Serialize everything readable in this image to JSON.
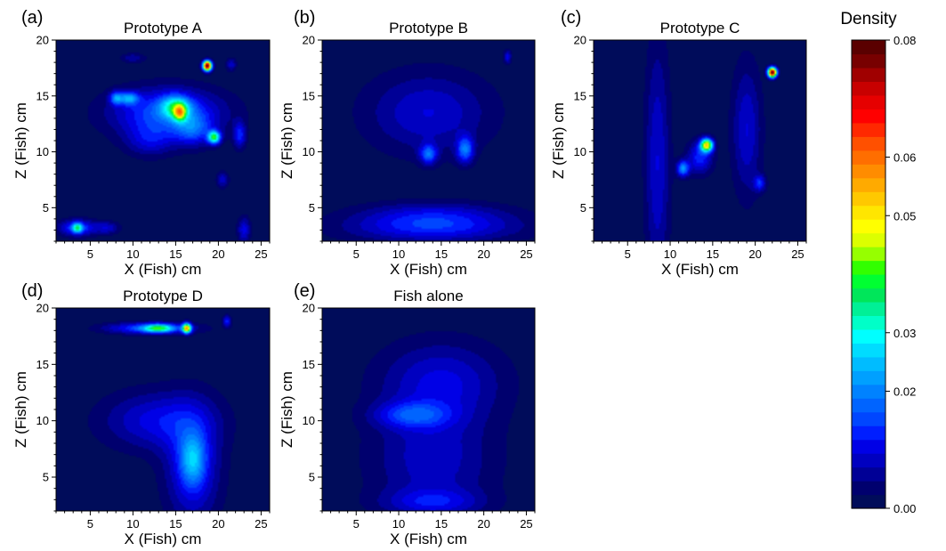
{
  "chart_data": [
    {
      "type": "heatmap",
      "panel_label": "(a)",
      "title": "Prototype A",
      "xlabel": "X (Fish) cm",
      "ylabel": "Z (Fish) cm",
      "xlim": [
        1,
        26
      ],
      "ylim": [
        2,
        20
      ],
      "xticks": [
        "5",
        "10",
        "15",
        "20",
        "25"
      ],
      "yticks": [
        "5",
        "10",
        "15",
        "20"
      ],
      "blobs": [
        {
          "x": 14,
          "y": 13.5,
          "sx": 4.5,
          "sy": 1.5,
          "v": 0.016
        },
        {
          "x": 15,
          "y": 14,
          "sx": 1.2,
          "sy": 0.7,
          "v": 0.022
        },
        {
          "x": 15.5,
          "y": 13.5,
          "sx": 0.5,
          "sy": 0.5,
          "v": 0.028
        },
        {
          "x": 9.5,
          "y": 14.8,
          "sx": 0.8,
          "sy": 0.4,
          "v": 0.018
        },
        {
          "x": 8,
          "y": 14.8,
          "sx": 0.5,
          "sy": 0.4,
          "v": 0.016
        },
        {
          "x": 19.5,
          "y": 11.3,
          "sx": 0.5,
          "sy": 0.4,
          "v": 0.035
        },
        {
          "x": 17,
          "y": 12,
          "sx": 1.5,
          "sy": 1,
          "v": 0.012
        },
        {
          "x": 22.5,
          "y": 11.5,
          "sx": 0.5,
          "sy": 0.8,
          "v": 0.012
        },
        {
          "x": 18.7,
          "y": 17.7,
          "sx": 0.35,
          "sy": 0.3,
          "v": 0.08
        },
        {
          "x": 3.5,
          "y": 3.2,
          "sx": 1.5,
          "sy": 0.5,
          "v": 0.015
        },
        {
          "x": 3.5,
          "y": 3.2,
          "sx": 0.4,
          "sy": 0.3,
          "v": 0.022
        },
        {
          "x": 7,
          "y": 3.2,
          "sx": 1,
          "sy": 0.4,
          "v": 0.008
        },
        {
          "x": 23,
          "y": 3,
          "sx": 0.5,
          "sy": 0.8,
          "v": 0.01
        },
        {
          "x": 10,
          "y": 18.4,
          "sx": 1,
          "sy": 0.3,
          "v": 0.006
        },
        {
          "x": 21.5,
          "y": 17.8,
          "sx": 0.4,
          "sy": 0.4,
          "v": 0.008
        },
        {
          "x": 20.5,
          "y": 7.5,
          "sx": 0.5,
          "sy": 0.5,
          "v": 0.008
        },
        {
          "x": 12,
          "y": 11,
          "sx": 2,
          "sy": 1,
          "v": 0.008
        }
      ]
    },
    {
      "type": "heatmap",
      "panel_label": "(b)",
      "title": "Prototype B",
      "xlabel": "X (Fish) cm",
      "ylabel": "Z (Fish) cm",
      "xlim": [
        1,
        26
      ],
      "ylim": [
        2,
        20
      ],
      "xticks": [
        "5",
        "10",
        "15",
        "20",
        "25"
      ],
      "yticks": [
        "5",
        "10",
        "15",
        "20"
      ],
      "blobs": [
        {
          "x": 14,
          "y": 3.2,
          "sx": 7,
          "sy": 0.9,
          "v": 0.012
        },
        {
          "x": 14,
          "y": 4.5,
          "sx": 6,
          "sy": 0.8,
          "v": 0.007
        },
        {
          "x": 13.5,
          "y": 13.5,
          "sx": 5,
          "sy": 2.5,
          "v": 0.009
        },
        {
          "x": 13.5,
          "y": 9.8,
          "sx": 0.7,
          "sy": 0.6,
          "v": 0.016
        },
        {
          "x": 17.8,
          "y": 10.2,
          "sx": 0.7,
          "sy": 0.8,
          "v": 0.017
        },
        {
          "x": 22.8,
          "y": 18.5,
          "sx": 0.3,
          "sy": 0.4,
          "v": 0.01
        }
      ]
    },
    {
      "type": "heatmap",
      "panel_label": "(c)",
      "title": "Prototype C",
      "xlabel": "X (Fish) cm",
      "ylabel": "Z (Fish) cm",
      "xlim": [
        1,
        26
      ],
      "ylim": [
        2,
        20
      ],
      "xticks": [
        "5",
        "10",
        "15",
        "20",
        "25"
      ],
      "yticks": [
        "5",
        "10",
        "15",
        "20"
      ],
      "blobs": [
        {
          "x": 8.5,
          "y": 9,
          "sx": 1,
          "sy": 7.5,
          "v": 0.009
        },
        {
          "x": 19,
          "y": 12,
          "sx": 1.2,
          "sy": 4,
          "v": 0.009
        },
        {
          "x": 14.3,
          "y": 10.6,
          "sx": 0.5,
          "sy": 0.4,
          "v": 0.048
        },
        {
          "x": 11.5,
          "y": 8.5,
          "sx": 0.5,
          "sy": 0.5,
          "v": 0.02
        },
        {
          "x": 13.5,
          "y": 9.5,
          "sx": 1,
          "sy": 1,
          "v": 0.013
        },
        {
          "x": 22,
          "y": 17.1,
          "sx": 0.35,
          "sy": 0.3,
          "v": 0.08
        },
        {
          "x": 20.5,
          "y": 7.2,
          "sx": 0.5,
          "sy": 0.5,
          "v": 0.012
        }
      ]
    },
    {
      "type": "heatmap",
      "panel_label": "(d)",
      "title": "Prototype D",
      "xlabel": "X (Fish) cm",
      "ylabel": "Z (Fish) cm",
      "xlim": [
        1,
        26
      ],
      "ylim": [
        2,
        20
      ],
      "xticks": [
        "5",
        "10",
        "15",
        "20",
        "25"
      ],
      "yticks": [
        "5",
        "10",
        "15",
        "20"
      ],
      "blobs": [
        {
          "x": 12,
          "y": 18.2,
          "sx": 3.5,
          "sy": 0.35,
          "v": 0.016
        },
        {
          "x": 13,
          "y": 18.2,
          "sx": 1.2,
          "sy": 0.25,
          "v": 0.026
        },
        {
          "x": 16.3,
          "y": 18.2,
          "sx": 0.35,
          "sy": 0.3,
          "v": 0.05
        },
        {
          "x": 21,
          "y": 18.8,
          "sx": 0.35,
          "sy": 0.35,
          "v": 0.012
        },
        {
          "x": 13,
          "y": 10,
          "sx": 4.5,
          "sy": 1.8,
          "v": 0.01
        },
        {
          "x": 17,
          "y": 6,
          "sx": 2.2,
          "sy": 3.5,
          "v": 0.012
        },
        {
          "x": 17,
          "y": 6.5,
          "sx": 1,
          "sy": 1.5,
          "v": 0.014
        }
      ]
    },
    {
      "type": "heatmap",
      "panel_label": "(e)",
      "title": "Fish alone",
      "xlabel": "X (Fish) cm",
      "ylabel": "Z (Fish) cm",
      "xlim": [
        1,
        26
      ],
      "ylim": [
        2,
        20
      ],
      "xticks": [
        "5",
        "10",
        "15",
        "20",
        "25"
      ],
      "yticks": [
        "5",
        "10",
        "15",
        "20"
      ],
      "blobs": [
        {
          "x": 15,
          "y": 13.5,
          "sx": 5,
          "sy": 2.5,
          "v": 0.009
        },
        {
          "x": 11.5,
          "y": 10.5,
          "sx": 3,
          "sy": 0.8,
          "v": 0.011
        },
        {
          "x": 14,
          "y": 6.5,
          "sx": 5,
          "sy": 3.5,
          "v": 0.008
        },
        {
          "x": 14,
          "y": 2.8,
          "sx": 4,
          "sy": 0.8,
          "v": 0.008
        }
      ]
    }
  ],
  "colorbar": {
    "title": "Density",
    "min": 0.0,
    "max": 0.08,
    "ticks": [
      "0.00",
      "0.02",
      "0.03",
      "0.05",
      "0.06",
      "0.08"
    ],
    "tick_values": [
      0.0,
      0.02,
      0.03,
      0.05,
      0.06,
      0.08
    ],
    "colors": [
      "#000c5a",
      "#00006e",
      "#000096",
      "#0000c0",
      "#0000e6",
      "#001eff",
      "#0046ff",
      "#0064ff",
      "#0082ff",
      "#00a0ff",
      "#00bcff",
      "#00dcff",
      "#00ffff",
      "#00ffc8",
      "#00f096",
      "#00e65a",
      "#00ff32",
      "#32ff00",
      "#96ff00",
      "#dcff00",
      "#ffff00",
      "#ffe600",
      "#ffc800",
      "#ffaa00",
      "#ff8c00",
      "#ff6e00",
      "#ff5000",
      "#ff2800",
      "#ff0000",
      "#e60000",
      "#c80000",
      "#a00000",
      "#780000",
      "#5a0000"
    ]
  }
}
